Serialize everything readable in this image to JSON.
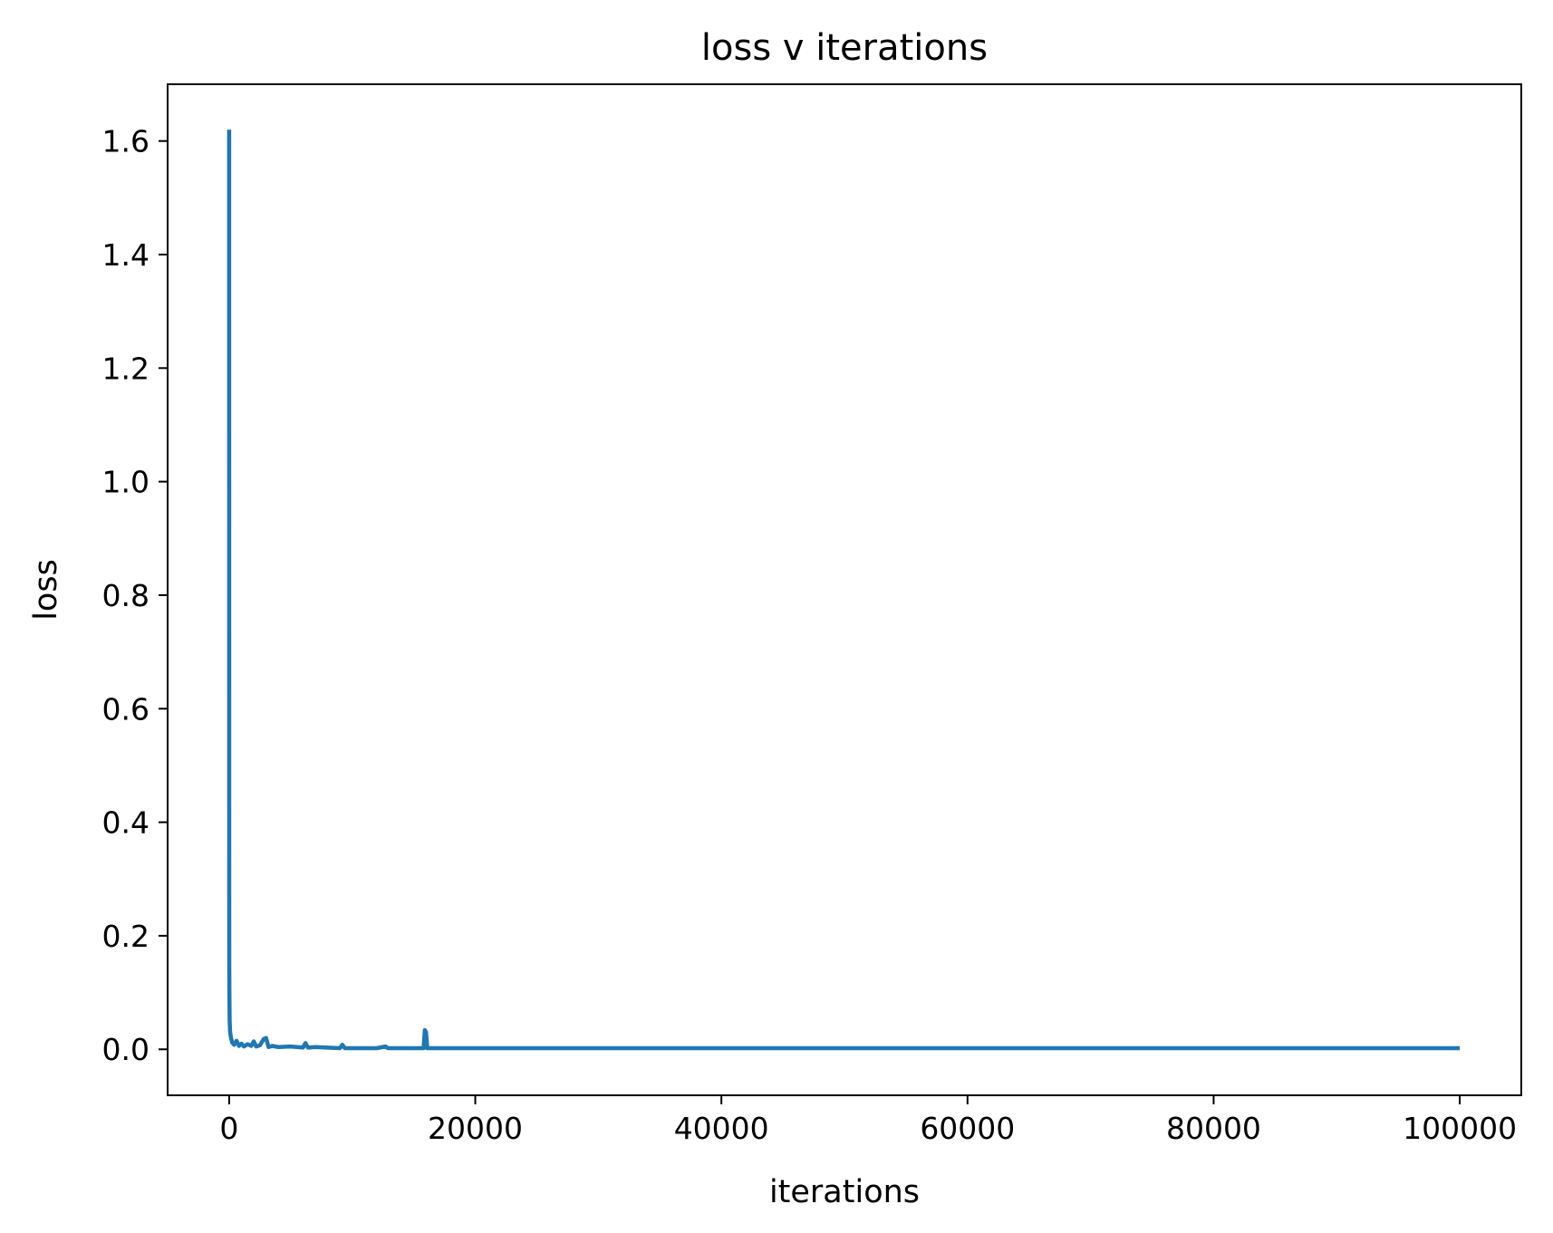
{
  "chart_data": {
    "type": "line",
    "title": "loss v iterations",
    "xlabel": "iterations",
    "ylabel": "loss",
    "xlim": [
      -5000,
      105000
    ],
    "ylim": [
      -0.081,
      1.7
    ],
    "grid": false,
    "legend": "none",
    "xticks": [
      0,
      20000,
      40000,
      60000,
      80000,
      100000
    ],
    "xtick_labels": [
      "0",
      "20000",
      "40000",
      "60000",
      "80000",
      "100000"
    ],
    "yticks": [
      0.0,
      0.2,
      0.4,
      0.6,
      0.8,
      1.0,
      1.2,
      1.4,
      1.6
    ],
    "ytick_labels": [
      "0.0",
      "0.2",
      "0.4",
      "0.6",
      "0.8",
      "1.0",
      "1.2",
      "1.4",
      "1.6"
    ],
    "series": [
      {
        "color": "#1f77b4",
        "x": [
          0,
          5,
          10,
          20,
          40,
          80,
          150,
          250,
          400,
          600,
          800,
          1000,
          1200,
          1500,
          1800,
          2000,
          2200,
          2500,
          2800,
          3000,
          3200,
          3500,
          4000,
          5000,
          6000,
          6200,
          6400,
          7000,
          8000,
          9000,
          9200,
          9400,
          10000,
          12000,
          12700,
          12900,
          14000,
          15800,
          15900,
          16000,
          16100,
          16300,
          18000,
          20000,
          25000,
          30000,
          35000,
          40000,
          45000,
          50000,
          55000,
          60000,
          65000,
          70000,
          75000,
          80000,
          85000,
          90000,
          95000,
          100000
        ],
        "y": [
          1.62,
          0.34,
          0.15,
          0.1,
          0.05,
          0.03,
          0.02,
          0.012,
          0.008,
          0.015,
          0.006,
          0.01,
          0.005,
          0.009,
          0.006,
          0.014,
          0.005,
          0.007,
          0.018,
          0.02,
          0.004,
          0.006,
          0.004,
          0.005,
          0.003,
          0.011,
          0.003,
          0.004,
          0.003,
          0.002,
          0.008,
          0.002,
          0.002,
          0.002,
          0.005,
          0.002,
          0.002,
          0.002,
          0.034,
          0.03,
          0.002,
          0.002,
          0.002,
          0.002,
          0.002,
          0.002,
          0.002,
          0.002,
          0.002,
          0.002,
          0.002,
          0.002,
          0.002,
          0.002,
          0.002,
          0.002,
          0.002,
          0.002,
          0.002,
          0.002
        ]
      }
    ]
  }
}
